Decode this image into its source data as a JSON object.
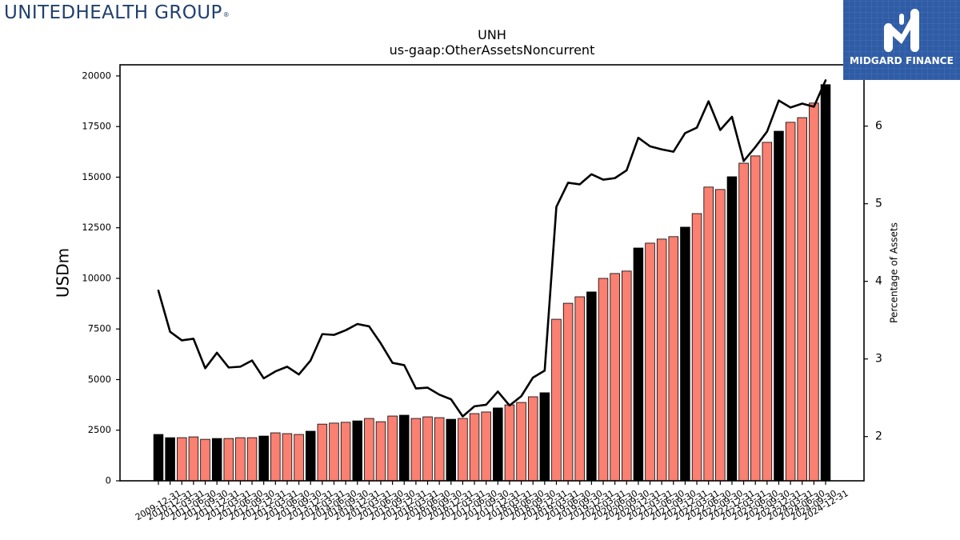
{
  "logos": {
    "left": {
      "text": "UNITEDHEALTH GROUP",
      "registered": "®",
      "color": "#21406e"
    },
    "right": {
      "text": "MIDGARD FINANCE",
      "icon": "midgard-m-icon",
      "background": "#2f5ca6",
      "color": "#ffffff"
    }
  },
  "chart_data": {
    "type": "bar",
    "title": "UNH",
    "subtitle": "us-gaap:OtherAssetsNoncurrent",
    "ylabel": "USDm",
    "y2label": "Percentage of Assets",
    "ylim": [
      0,
      20550
    ],
    "y2lim": [
      1.43,
      6.79
    ],
    "yticks": [
      0,
      2500,
      5000,
      7500,
      10000,
      12500,
      15000,
      17500,
      20000
    ],
    "y2ticks": [
      2,
      3,
      4,
      5,
      6
    ],
    "grid": false,
    "legend": "none",
    "categories": [
      "2009-12-31",
      "2010-12-31",
      "2011-03-31",
      "2011-06-30",
      "2011-09-30",
      "2011-12-31",
      "2012-03-31",
      "2012-06-30",
      "2012-09-30",
      "2012-12-31",
      "2013-03-31",
      "2013-06-30",
      "2013-09-30",
      "2013-12-31",
      "2014-03-31",
      "2014-06-30",
      "2014-09-30",
      "2014-12-31",
      "2015-03-31",
      "2015-06-30",
      "2015-09-30",
      "2015-12-31",
      "2016-03-31",
      "2016-06-30",
      "2016-09-30",
      "2016-12-31",
      "2017-03-31",
      "2017-06-30",
      "2017-09-30",
      "2017-12-31",
      "2018-03-31",
      "2018-06-30",
      "2018-09-30",
      "2018-12-31",
      "2019-03-31",
      "2019-06-30",
      "2019-09-30",
      "2019-12-31",
      "2020-03-31",
      "2020-06-30",
      "2020-09-30",
      "2020-12-31",
      "2021-03-31",
      "2021-06-30",
      "2021-09-30",
      "2021-12-31",
      "2022-03-31",
      "2022-06-30",
      "2022-09-30",
      "2022-12-31",
      "2023-03-31",
      "2023-06-30",
      "2023-09-30",
      "2023-12-31",
      "2024-03-31",
      "2024-06-30",
      "2024-09-30",
      "2024-12-31"
    ],
    "series": [
      {
        "type": "bar",
        "axis": "left",
        "values": [
          2290,
          2130,
          2130,
          2170,
          2050,
          2090,
          2090,
          2130,
          2130,
          2210,
          2370,
          2330,
          2290,
          2450,
          2800,
          2850,
          2890,
          2960,
          3080,
          2920,
          3200,
          3240,
          3080,
          3160,
          3120,
          3040,
          3080,
          3320,
          3400,
          3600,
          3750,
          3870,
          4150,
          4350,
          7980,
          8770,
          9090,
          9330,
          10000,
          10240,
          10360,
          11500,
          11740,
          11940,
          12060,
          12530,
          13200,
          14510,
          14390,
          15020,
          15690,
          16050,
          16720,
          17270,
          17710,
          17940,
          18660,
          19570
        ]
      },
      {
        "type": "line",
        "axis": "right",
        "values": [
          3.88,
          3.35,
          3.24,
          3.26,
          2.88,
          3.08,
          2.89,
          2.9,
          2.98,
          2.75,
          2.84,
          2.9,
          2.8,
          2.98,
          3.32,
          3.31,
          3.37,
          3.45,
          3.42,
          3.2,
          2.95,
          2.92,
          2.62,
          2.63,
          2.54,
          2.48,
          2.26,
          2.39,
          2.41,
          2.58,
          2.4,
          2.52,
          2.76,
          2.85,
          4.96,
          5.27,
          5.25,
          5.38,
          5.31,
          5.33,
          5.43,
          5.85,
          5.74,
          5.7,
          5.67,
          5.91,
          5.98,
          6.32,
          5.95,
          6.12,
          5.55,
          5.73,
          5.93,
          6.33,
          6.24,
          6.29,
          6.25,
          6.59
        ]
      }
    ],
    "colors": {
      "year_end_bar": "#000000",
      "quarter_bar": "#fa8072",
      "bar_edge": "#000000",
      "line": "#000000"
    }
  }
}
